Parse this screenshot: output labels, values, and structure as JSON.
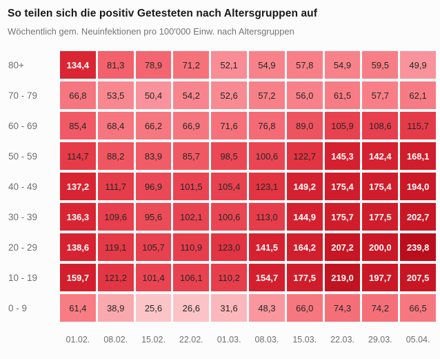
{
  "header": {
    "title": "So teilen sich die positiv Getesteten nach Altersgruppen auf",
    "subtitle": "Wöchentlich gem. Neuinfektionen pro 100'000 Einw. nach Altersgruppen"
  },
  "chart_data": {
    "type": "heatmap",
    "title": "So teilen sich die positiv Getesteten nach Altersgruppen auf",
    "subtitle": "Wöchentlich gem. Neuinfektionen pro 100'000 Einw. nach Altersgruppen",
    "x_labels": [
      "01.02.",
      "08.02.",
      "15.02.",
      "22.02.",
      "01.03.",
      "08.03.",
      "15.03.",
      "22.03.",
      "29.03.",
      "05.04."
    ],
    "y_labels": [
      "80+",
      "70 - 79",
      "60 - 69",
      "50 - 59",
      "40 - 49",
      "30 - 39",
      "20 - 29",
      "10 - 19",
      "0 - 9"
    ],
    "rows": [
      {
        "label": "80+",
        "values": [
          134.4,
          81.3,
          78.9,
          71.2,
          52.1,
          54.9,
          57.8,
          54.9,
          59.5,
          49.9
        ]
      },
      {
        "label": "70 - 79",
        "values": [
          66.8,
          53.5,
          50.4,
          54.2,
          52.6,
          57.2,
          56.0,
          61.5,
          57.7,
          62.1
        ]
      },
      {
        "label": "60 - 69",
        "values": [
          85.4,
          68.4,
          66.2,
          66.9,
          71.6,
          76.8,
          89.0,
          105.9,
          108.6,
          115.7
        ]
      },
      {
        "label": "50 - 59",
        "values": [
          114.7,
          88.2,
          83.9,
          85.7,
          98.5,
          100.6,
          122.7,
          145.3,
          142.4,
          168.1
        ]
      },
      {
        "label": "40 - 49",
        "values": [
          137.2,
          111.7,
          96.9,
          101.5,
          105.4,
          123.1,
          149.2,
          175.4,
          175.4,
          194.0
        ]
      },
      {
        "label": "30 - 39",
        "values": [
          136.3,
          109.6,
          95.6,
          102.1,
          100.6,
          113.0,
          144.9,
          175.7,
          177.5,
          202.7
        ]
      },
      {
        "label": "20 - 29",
        "values": [
          138.6,
          119.1,
          105.7,
          110.9,
          123.0,
          141.5,
          164.2,
          207.2,
          200.0,
          239.8
        ]
      },
      {
        "label": "10 - 19",
        "values": [
          159.7,
          121.2,
          101.4,
          106.1,
          110.2,
          154.7,
          177.5,
          219.0,
          197.7,
          207.5
        ]
      },
      {
        "label": "0 - 9",
        "values": [
          61.4,
          38.9,
          25.6,
          26.6,
          31.6,
          48.3,
          66.0,
          74.3,
          74.2,
          66.5
        ]
      }
    ],
    "value_range": [
      25.6,
      239.8
    ],
    "decimal_separator": ",",
    "grid": false,
    "legend": "none",
    "color_scale": {
      "stops": [
        [
          25,
          "#fbc6c9"
        ],
        [
          40,
          "#f9a6ab"
        ],
        [
          50,
          "#f9939b"
        ],
        [
          55,
          "#f8828a"
        ],
        [
          75,
          "#f56e78"
        ],
        [
          85,
          "#f05a65"
        ],
        [
          100,
          "#ea4553"
        ],
        [
          120,
          "#e43846"
        ],
        [
          130,
          "#dd2a37"
        ],
        [
          140,
          "#d62230"
        ],
        [
          170,
          "#d11e2c"
        ],
        [
          200,
          "#cb1826"
        ],
        [
          220,
          "#c21321"
        ],
        [
          240,
          "#bb0e1d"
        ]
      ]
    },
    "text_rules": {
      "white_threshold": 130,
      "dark": "#262626",
      "light": "#ffffff"
    }
  }
}
